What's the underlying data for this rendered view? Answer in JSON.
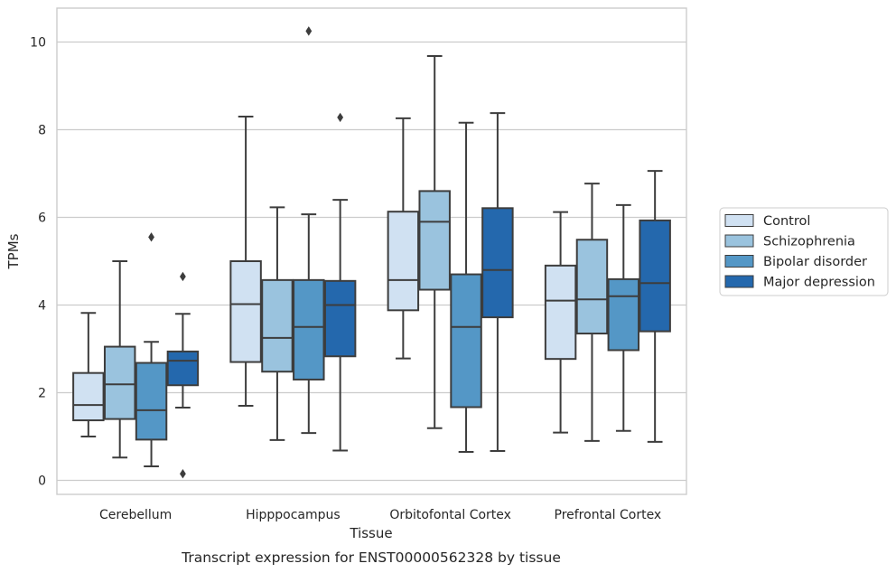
{
  "chart_data": {
    "type": "box",
    "title": "",
    "caption": "Transcript expression for ENST00000562328 by tissue",
    "xlabel": "Tissue",
    "ylabel": "TPMs",
    "ylim": [
      -0.3,
      10.75
    ],
    "yticks": [
      0,
      2,
      4,
      6,
      8,
      10
    ],
    "grid": "horizontal",
    "legend_position": "right",
    "categories": [
      "Cerebellum",
      "Hipppocampus",
      "Orbitofontal Cortex",
      "Prefrontal Cortex"
    ],
    "series": [
      {
        "name": "Control",
        "color": "#d0e1f2",
        "boxes": [
          {
            "whisker_low": 1.0,
            "q1": 1.37,
            "median": 1.72,
            "q3": 2.45,
            "whisker_high": 3.82,
            "outliers": []
          },
          {
            "whisker_low": 1.7,
            "q1": 2.7,
            "median": 4.02,
            "q3": 5.0,
            "whisker_high": 8.3,
            "outliers": []
          },
          {
            "whisker_low": 2.78,
            "q1": 3.88,
            "median": 4.57,
            "q3": 6.13,
            "whisker_high": 8.26,
            "outliers": []
          },
          {
            "whisker_low": 1.09,
            "q1": 2.77,
            "median": 4.1,
            "q3": 4.9,
            "whisker_high": 6.12,
            "outliers": []
          }
        ]
      },
      {
        "name": "Schizophrenia",
        "color": "#9ac3de",
        "boxes": [
          {
            "whisker_low": 0.52,
            "q1": 1.4,
            "median": 2.19,
            "q3": 3.05,
            "whisker_high": 5.0,
            "outliers": []
          },
          {
            "whisker_low": 0.92,
            "q1": 2.48,
            "median": 3.25,
            "q3": 4.57,
            "whisker_high": 6.23,
            "outliers": []
          },
          {
            "whisker_low": 1.19,
            "q1": 4.35,
            "median": 5.9,
            "q3": 6.6,
            "whisker_high": 9.68,
            "outliers": []
          },
          {
            "whisker_low": 0.9,
            "q1": 3.35,
            "median": 4.13,
            "q3": 5.49,
            "whisker_high": 6.77,
            "outliers": []
          }
        ]
      },
      {
        "name": "Bipolar disorder",
        "color": "#5497c6",
        "boxes": [
          {
            "whisker_low": 0.32,
            "q1": 0.93,
            "median": 1.6,
            "q3": 2.68,
            "whisker_high": 3.16,
            "outliers": [
              5.55
            ]
          },
          {
            "whisker_low": 1.08,
            "q1": 2.3,
            "median": 3.5,
            "q3": 4.57,
            "whisker_high": 6.07,
            "outliers": [
              10.25
            ]
          },
          {
            "whisker_low": 0.65,
            "q1": 1.67,
            "median": 3.5,
            "q3": 4.7,
            "whisker_high": 8.16,
            "outliers": []
          },
          {
            "whisker_low": 1.13,
            "q1": 2.97,
            "median": 4.2,
            "q3": 4.59,
            "whisker_high": 6.28,
            "outliers": []
          }
        ]
      },
      {
        "name": "Major depression",
        "color": "#2468ad",
        "boxes": [
          {
            "whisker_low": 1.66,
            "q1": 2.17,
            "median": 2.73,
            "q3": 2.94,
            "whisker_high": 3.8,
            "outliers": [
              4.65,
              0.15
            ]
          },
          {
            "whisker_low": 0.68,
            "q1": 2.83,
            "median": 4.0,
            "q3": 4.55,
            "whisker_high": 6.4,
            "outliers": [
              8.28
            ]
          },
          {
            "whisker_low": 0.67,
            "q1": 3.72,
            "median": 4.8,
            "q3": 6.21,
            "whisker_high": 8.38,
            "outliers": []
          },
          {
            "whisker_low": 0.88,
            "q1": 3.4,
            "median": 4.5,
            "q3": 5.93,
            "whisker_high": 7.06,
            "outliers": []
          }
        ]
      }
    ]
  }
}
